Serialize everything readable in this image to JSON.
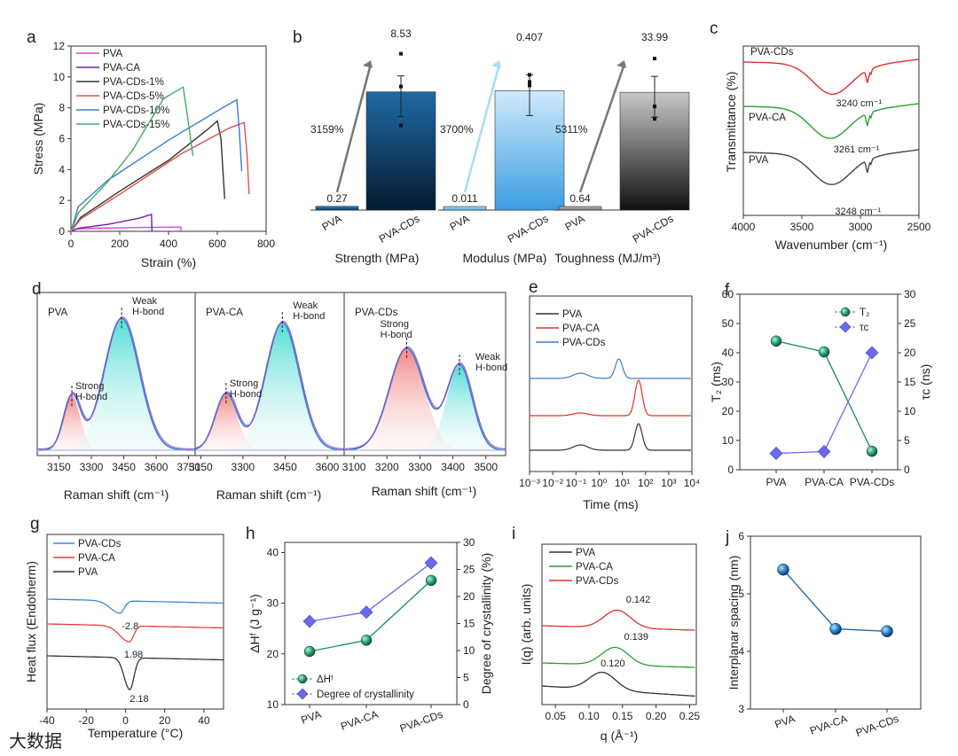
{
  "panels": {
    "a": {
      "label": "a",
      "xlabel": "Strain (%)",
      "ylabel": "Stress (MPa)",
      "xlim": [
        0,
        800
      ],
      "ylim": [
        0,
        12
      ],
      "xticks": [
        "0",
        "200",
        "400",
        "600",
        "800"
      ],
      "yticks": [
        "0",
        "2",
        "4",
        "6",
        "8",
        "10",
        "12"
      ],
      "colors": [
        "#e040e0",
        "#7b1fa2",
        "#333333",
        "#e05050",
        "#3a7bd5",
        "#44aa66"
      ],
      "series": [
        {
          "name": "PVA",
          "points": [
            [
              0,
              0
            ],
            [
              20,
              0.15
            ],
            [
              100,
              0.2
            ],
            [
              300,
              0.25
            ],
            [
              450,
              0.27
            ],
            [
              452,
              0
            ]
          ]
        },
        {
          "name": "PVA-CA",
          "points": [
            [
              0,
              0
            ],
            [
              30,
              0.2
            ],
            [
              150,
              0.45
            ],
            [
              280,
              0.85
            ],
            [
              330,
              1.1
            ],
            [
              332,
              0
            ]
          ]
        },
        {
          "name": "PVA-CDs-1%",
          "points": [
            [
              0,
              0
            ],
            [
              40,
              0.9
            ],
            [
              200,
              2.6
            ],
            [
              400,
              4.6
            ],
            [
              560,
              6.6
            ],
            [
              600,
              7.15
            ],
            [
              615,
              6.0
            ],
            [
              630,
              2.1
            ]
          ]
        },
        {
          "name": "PVA-CDs-5%",
          "points": [
            [
              0,
              0
            ],
            [
              40,
              0.8
            ],
            [
              200,
              2.4
            ],
            [
              450,
              5.0
            ],
            [
              650,
              6.7
            ],
            [
              710,
              7.05
            ],
            [
              722,
              5.0
            ],
            [
              730,
              2.4
            ]
          ]
        },
        {
          "name": "PVA-CDs-10%",
          "points": [
            [
              0,
              0
            ],
            [
              30,
              1.6
            ],
            [
              150,
              3.3
            ],
            [
              400,
              5.9
            ],
            [
              600,
              7.8
            ],
            [
              680,
              8.53
            ],
            [
              690,
              6.5
            ],
            [
              700,
              3.9
            ]
          ]
        },
        {
          "name": "PVA-CDs-15%",
          "points": [
            [
              0,
              0
            ],
            [
              30,
              1.2
            ],
            [
              150,
              3.2
            ],
            [
              250,
              5.2
            ],
            [
              380,
              8.6
            ],
            [
              460,
              9.35
            ],
            [
              480,
              7.2
            ],
            [
              500,
              4.9
            ]
          ]
        }
      ]
    },
    "b": {
      "label": "b",
      "groups": [
        {
          "title": "Strength (MPa)",
          "categories": [
            "PVA",
            "PVA-CDs"
          ],
          "values": [
            0.27,
            8.53
          ],
          "value_labels": [
            "0.27",
            "8.53"
          ],
          "increase": "3159%",
          "ylim": [
            0,
            11
          ],
          "colors_top": [
            "#2f7fd0",
            "#1f6aa5"
          ],
          "colors_bottom": [
            "#0b3a66",
            "#061a30"
          ]
        },
        {
          "title": "Modulus (MPa)",
          "categories": [
            "PVA",
            "PVA-CDs"
          ],
          "values": [
            0.011,
            0.407
          ],
          "value_labels": [
            "0.011",
            "0.407"
          ],
          "increase": "3700%",
          "ylim": [
            0,
            0.52
          ],
          "colors_top": [
            "#9fd6f7",
            "#cfeafb"
          ],
          "colors_bottom": [
            "#5ab0e8",
            "#3c9de2"
          ]
        },
        {
          "title": "Toughness (MJ/m³)",
          "categories": [
            "PVA",
            "PVA-CDs"
          ],
          "values": [
            0.64,
            33.99
          ],
          "value_labels": [
            "0.64",
            "33.99"
          ],
          "increase": "5311%",
          "ylim": [
            0,
            44
          ],
          "colors_top": [
            "#bbbbbb",
            "#c8c8c8"
          ],
          "colors_bottom": [
            "#777777",
            "#101010"
          ]
        }
      ]
    },
    "c": {
      "label": "c",
      "xlabel": "Wavenumber (cm⁻¹)",
      "ylabel": "Transmittance (%)",
      "xlim": [
        4000,
        2500
      ],
      "xticks": [
        "4000",
        "3500",
        "3000",
        "2500"
      ],
      "series": [
        {
          "name": "PVA-CDs",
          "color": "#e03030",
          "label": "PVA-CDs",
          "peak": "3240 cm⁻¹"
        },
        {
          "name": "PVA-CA",
          "color": "#2aa02a",
          "label": "PVA-CA",
          "peak": "3261 cm⁻¹"
        },
        {
          "name": "PVA",
          "color": "#444444",
          "label": "PVA",
          "peak": "3248 cm⁻¹"
        }
      ]
    },
    "d": {
      "label": "d",
      "xlabel": "Raman shift (cm⁻¹)",
      "subplots": [
        {
          "name": "PVA",
          "xlim": [
            3050,
            3780
          ],
          "xticks": [
            "3150",
            "3300",
            "3450",
            "3600",
            "3750"
          ],
          "strong": "Strong H-bond",
          "weak": "Weak H-bond",
          "peaks": [
            {
              "c": 3210,
              "w": 55,
              "h": 0.38
            },
            {
              "c": 3440,
              "w": 115,
              "h": 0.93
            }
          ]
        },
        {
          "name": "PVA-CA",
          "xlim": [
            3130,
            3660
          ],
          "xticks": [
            "3150",
            "3300",
            "3450",
            "3600"
          ],
          "strong": "Strong H-bond",
          "weak": "Weak H-bond",
          "peaks": [
            {
              "c": 3240,
              "w": 55,
              "h": 0.4
            },
            {
              "c": 3440,
              "w": 85,
              "h": 0.9
            }
          ]
        },
        {
          "name": "PVA-CDs",
          "xlim": [
            3070,
            3560
          ],
          "xticks": [
            "3100",
            "3200",
            "3300",
            "3400",
            "3500"
          ],
          "strong": "Strong H-bond",
          "weak": "Weak H-bond",
          "peaks": [
            {
              "c": 3260,
              "w": 75,
              "h": 0.72
            },
            {
              "c": 3420,
              "w": 55,
              "h": 0.6
            }
          ]
        }
      ],
      "strong_label": [
        "Strong",
        "H-bond"
      ],
      "weak_label": [
        "Weak",
        "H-bond"
      ]
    },
    "e": {
      "label": "e",
      "xlabel": "Time (ms)",
      "xticks": [
        "10⁻³",
        "10⁻²",
        "10⁻¹",
        "10⁰",
        "10¹",
        "10²",
        "10³",
        "10⁴"
      ],
      "series": [
        {
          "name": "PVA",
          "color": "#333333"
        },
        {
          "name": "PVA-CA",
          "color": "#e03030"
        },
        {
          "name": "PVA-CDs",
          "color": "#3a7bd5"
        }
      ]
    },
    "f": {
      "label": "f",
      "categories": [
        "PVA",
        "PVA-CA",
        "PVA-CDs"
      ],
      "ylabel_left": "T₂ (ms)",
      "ylabel_right": "τc (ns)",
      "ylim_left": [
        0,
        60
      ],
      "ylim_right": [
        0,
        30
      ],
      "yticks_left": [
        "0",
        "10",
        "20",
        "30",
        "40",
        "50",
        "60"
      ],
      "yticks_right": [
        "0",
        "5",
        "10",
        "15",
        "20",
        "25",
        "30"
      ],
      "series": [
        {
          "name": "T₂",
          "axis": "left",
          "values": [
            44,
            40.3,
            6.3
          ],
          "color": "#1a8f5c"
        },
        {
          "name": "τc",
          "axis": "right",
          "values": [
            2.8,
            3.1,
            20
          ],
          "color": "#6a6af0"
        }
      ]
    },
    "g": {
      "label": "g",
      "xlabel": "Temperature (°C)",
      "ylabel": "Heat flux (Endotherm)",
      "xlim": [
        -40,
        50
      ],
      "xticks": [
        "-40",
        "-20",
        "0",
        "20",
        "40"
      ],
      "series": [
        {
          "name": "PVA-CDs",
          "color": "#3a8ad5",
          "dip_x": -2.8,
          "ann": "-2.8"
        },
        {
          "name": "PVA-CA",
          "color": "#e04040",
          "dip_x": 1.98,
          "ann": "1.98"
        },
        {
          "name": "PVA",
          "color": "#333333",
          "dip_x": 2.18,
          "ann": "2.18"
        }
      ]
    },
    "h": {
      "label": "h",
      "categories": [
        "PVA",
        "PVA-CA",
        "PVA-CDs"
      ],
      "ylabel_left": "ΔHᶠ (J g⁻¹)",
      "ylabel_right": "Degree of crystallinity (%)",
      "ylim_left": [
        10,
        42
      ],
      "ylim_right": [
        0,
        30
      ],
      "yticks_left": [
        "10",
        "20",
        "30",
        "40"
      ],
      "yticks_right": [
        "0",
        "5",
        "10",
        "15",
        "20",
        "25",
        "30"
      ],
      "series": [
        {
          "name": "ΔHᶠ",
          "axis": "left",
          "values": [
            20.5,
            22.7,
            34.5
          ],
          "color": "#1a8f5c"
        },
        {
          "name": "Degree of crystallinity",
          "axis": "right",
          "values": [
            15.4,
            17.1,
            26.2
          ],
          "color": "#6a6af0"
        }
      ]
    },
    "i": {
      "label": "i",
      "xlabel": "q (Å⁻¹)",
      "ylabel": "I(q) (arb. units)",
      "xlim": [
        0.03,
        0.26
      ],
      "xticks": [
        "0.05",
        "0.10",
        "0.15",
        "0.20",
        "0.25"
      ],
      "series": [
        {
          "name": "PVA",
          "color": "#333333",
          "peak": 0.12,
          "ann": "0.120"
        },
        {
          "name": "PVA-CA",
          "color": "#2aa02a",
          "peak": 0.139,
          "ann": "0.139"
        },
        {
          "name": "PVA-CDs",
          "color": "#e03030",
          "peak": 0.142,
          "ann": "0.142"
        }
      ]
    },
    "j": {
      "label": "j",
      "categories": [
        "PVA",
        "PVA-CA",
        "PVA-CDs"
      ],
      "ylabel": "Interplanar spacing (nm)",
      "ylim": [
        3,
        6
      ],
      "yticks": [
        "3",
        "4",
        "5",
        "6"
      ],
      "values": [
        5.42,
        4.39,
        4.35
      ],
      "color": "#1f6aa5"
    }
  },
  "watermark": "大数据"
}
